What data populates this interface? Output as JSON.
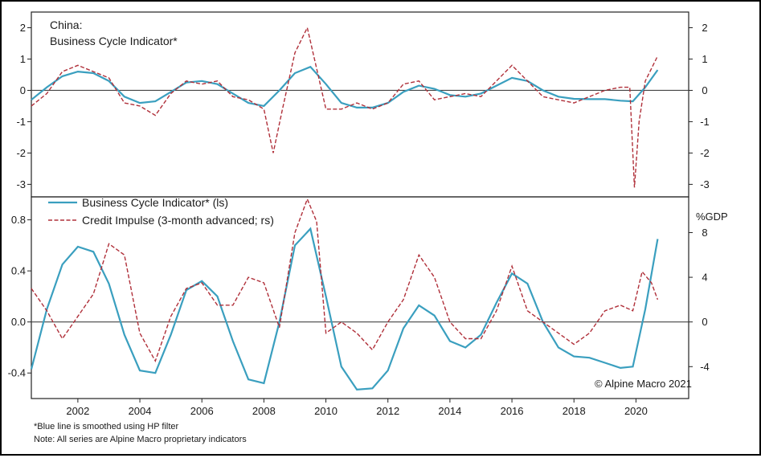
{
  "copyright": "© Alpine Macro 2021",
  "notes": [
    "*Blue line is smoothed using HP filter",
    "Note: All series are Alpine Macro proprietary indicators"
  ],
  "legend": {
    "bci": "Business Cycle Indicator* (ls)",
    "credit_impulse": "Credit Impulse (3-month advanced; rs)"
  },
  "colors": {
    "bci": "#3a9fbf",
    "credit_impulse": "#b0303a"
  },
  "chart_data": [
    {
      "type": "line",
      "title_line1": "China:",
      "title_line2": "Business Cycle Indicator*",
      "xlim": [
        2000.5,
        2021.7
      ],
      "ylim": [
        -3.4,
        2.5
      ],
      "y_ticks_left": [
        -3,
        -2,
        -1,
        0,
        1,
        2
      ],
      "y_ticks_right": [
        -3,
        -2,
        -1,
        0,
        1,
        2
      ],
      "series": [
        {
          "key": "bci",
          "x": [
            2000.5,
            2001.0,
            2001.5,
            2002.0,
            2002.5,
            2003.0,
            2003.5,
            2004.0,
            2004.5,
            2005.0,
            2005.5,
            2006.0,
            2006.5,
            2007.0,
            2007.5,
            2008.0,
            2008.5,
            2009.0,
            2009.5,
            2010.0,
            2010.5,
            2011.0,
            2011.5,
            2012.0,
            2012.5,
            2013.0,
            2013.5,
            2014.0,
            2014.5,
            2015.0,
            2015.5,
            2016.0,
            2016.5,
            2017.0,
            2017.5,
            2018.0,
            2018.5,
            2019.0,
            2019.5,
            2019.9,
            2020.3,
            2020.7
          ],
          "y": [
            -0.3,
            0.1,
            0.45,
            0.6,
            0.55,
            0.3,
            -0.2,
            -0.4,
            -0.35,
            -0.05,
            0.25,
            0.3,
            0.2,
            -0.1,
            -0.4,
            -0.5,
            0.0,
            0.55,
            0.75,
            0.2,
            -0.4,
            -0.55,
            -0.55,
            -0.4,
            -0.05,
            0.15,
            0.05,
            -0.15,
            -0.2,
            -0.1,
            0.15,
            0.4,
            0.3,
            0.0,
            -0.2,
            -0.27,
            -0.28,
            -0.28,
            -0.33,
            -0.35,
            0.1,
            0.65
          ]
        },
        {
          "key": "credit_impulse",
          "x": [
            2000.5,
            2001.0,
            2001.5,
            2002.0,
            2002.5,
            2003.0,
            2003.5,
            2004.0,
            2004.5,
            2005.0,
            2005.5,
            2006.0,
            2006.5,
            2007.0,
            2007.5,
            2008.0,
            2008.3,
            2008.6,
            2009.0,
            2009.4,
            2009.7,
            2010.0,
            2010.5,
            2011.0,
            2011.5,
            2012.0,
            2012.5,
            2013.0,
            2013.5,
            2014.0,
            2014.5,
            2015.0,
            2015.5,
            2016.0,
            2016.5,
            2017.0,
            2017.5,
            2018.0,
            2018.5,
            2019.0,
            2019.5,
            2019.8,
            2019.95,
            2020.1,
            2020.3,
            2020.6,
            2020.7
          ],
          "y": [
            -0.5,
            -0.1,
            0.6,
            0.8,
            0.6,
            0.4,
            -0.4,
            -0.5,
            -0.8,
            -0.1,
            0.3,
            0.2,
            0.3,
            -0.2,
            -0.3,
            -0.6,
            -2.0,
            -0.6,
            1.2,
            2.0,
            0.7,
            -0.6,
            -0.6,
            -0.4,
            -0.6,
            -0.4,
            0.2,
            0.3,
            -0.3,
            -0.2,
            -0.1,
            -0.2,
            0.3,
            0.8,
            0.3,
            -0.2,
            -0.3,
            -0.4,
            -0.2,
            0.0,
            0.1,
            0.1,
            -3.1,
            -1.0,
            0.3,
            0.9,
            1.1
          ]
        }
      ]
    },
    {
      "type": "line",
      "right_unit": "%GDP",
      "xlim": [
        2000.5,
        2021.7
      ],
      "ylim_left": [
        -0.6,
        0.98
      ],
      "ylim_right": [
        -6.857,
        11.2
      ],
      "y_ticks_left": [
        -0.4,
        0.0,
        0.4,
        0.8
      ],
      "y_tick_labels_left": [
        "-0.4",
        "0.0",
        "0.4",
        "0.8"
      ],
      "y_ticks_right": [
        -4,
        0,
        4,
        8
      ],
      "x_ticks": [
        2002,
        2004,
        2006,
        2008,
        2010,
        2012,
        2014,
        2016,
        2018,
        2020
      ],
      "series": [
        {
          "key": "bci",
          "axis": "left",
          "x": [
            2000.5,
            2001.0,
            2001.5,
            2002.0,
            2002.5,
            2003.0,
            2003.5,
            2004.0,
            2004.5,
            2005.0,
            2005.5,
            2006.0,
            2006.5,
            2007.0,
            2007.5,
            2008.0,
            2008.5,
            2009.0,
            2009.5,
            2010.0,
            2010.5,
            2011.0,
            2011.5,
            2012.0,
            2012.5,
            2013.0,
            2013.5,
            2014.0,
            2014.5,
            2015.0,
            2015.5,
            2016.0,
            2016.5,
            2017.0,
            2017.5,
            2018.0,
            2018.5,
            2019.0,
            2019.5,
            2019.9,
            2020.3,
            2020.7
          ],
          "y": [
            -0.37,
            0.1,
            0.45,
            0.59,
            0.55,
            0.3,
            -0.1,
            -0.38,
            -0.4,
            -0.1,
            0.25,
            0.32,
            0.2,
            -0.15,
            -0.45,
            -0.48,
            0.0,
            0.6,
            0.73,
            0.2,
            -0.35,
            -0.53,
            -0.52,
            -0.38,
            -0.05,
            0.13,
            0.05,
            -0.15,
            -0.2,
            -0.1,
            0.15,
            0.38,
            0.3,
            0.0,
            -0.2,
            -0.27,
            -0.28,
            -0.32,
            -0.36,
            -0.35,
            0.1,
            0.65
          ]
        },
        {
          "key": "credit_impulse",
          "axis": "right",
          "x": [
            2000.5,
            2001.0,
            2001.5,
            2002.0,
            2002.5,
            2003.0,
            2003.5,
            2004.0,
            2004.5,
            2005.0,
            2005.5,
            2006.0,
            2006.5,
            2007.0,
            2007.5,
            2008.0,
            2008.5,
            2009.0,
            2009.4,
            2009.7,
            2010.0,
            2010.5,
            2011.0,
            2011.5,
            2012.0,
            2012.5,
            2013.0,
            2013.5,
            2014.0,
            2014.5,
            2015.0,
            2015.5,
            2016.0,
            2016.5,
            2017.0,
            2017.5,
            2018.0,
            2018.5,
            2019.0,
            2019.5,
            2019.9,
            2020.2,
            2020.5,
            2020.7
          ],
          "y": [
            3.0,
            1.0,
            -1.5,
            0.5,
            2.5,
            7.0,
            6.0,
            -1.0,
            -3.5,
            0.5,
            3.0,
            3.5,
            1.5,
            1.5,
            4.0,
            3.5,
            -0.5,
            8.0,
            11.0,
            9.0,
            -1.0,
            0.0,
            -1.0,
            -2.5,
            0.0,
            2.0,
            6.0,
            4.0,
            0.0,
            -1.5,
            -1.5,
            1.0,
            5.0,
            1.0,
            0.0,
            -1.0,
            -2.0,
            -1.0,
            1.0,
            1.5,
            1.0,
            4.5,
            3.5,
            2.0
          ]
        }
      ]
    }
  ]
}
